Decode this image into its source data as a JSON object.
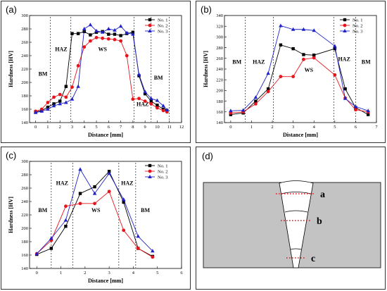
{
  "colors": {
    "series": [
      "#000000",
      "#e8141b",
      "#1f22c8"
    ],
    "plate": "#c3c3c3",
    "weld": "#ffffff",
    "dots": "#e8141b"
  },
  "chart_data": [
    {
      "type": "line",
      "label": "(a)",
      "xlabel": "Distance [mm]",
      "ylabel": "Hardness [HV]",
      "xlim": [
        -0.5,
        12
      ],
      "ylim": [
        140,
        300
      ],
      "xticks": [
        0,
        1,
        2,
        3,
        4,
        5,
        6,
        7,
        8,
        9,
        10,
        11,
        12
      ],
      "yticks": [
        140,
        160,
        180,
        200,
        220,
        240,
        260,
        280,
        300
      ],
      "boundaries": [
        1.2,
        2.9,
        8.1,
        9.5,
        11
      ],
      "regions": [
        {
          "text": "BM",
          "x": 0.6,
          "y": 210
        },
        {
          "text": "HAZ",
          "x": 2.1,
          "y": 247
        },
        {
          "text": "WS",
          "x": 5.5,
          "y": 247
        },
        {
          "text": "HAZ",
          "x": 8.8,
          "y": 165
        },
        {
          "text": "BM",
          "x": 10.1,
          "y": 204
        }
      ],
      "legend": "top-right",
      "series": [
        {
          "name": "No. 1",
          "marker": "square",
          "x": [
            0,
            0.5,
            1,
            1.5,
            2,
            2.5,
            3,
            3.5,
            4,
            4.5,
            5,
            5.5,
            6,
            6.5,
            7,
            7.5,
            8,
            8.5,
            9,
            9.5,
            10,
            10.5,
            10.8
          ],
          "y": [
            156,
            158,
            163,
            168,
            172,
            194,
            273,
            273,
            276,
            271,
            275,
            276,
            272,
            272,
            270,
            273,
            275,
            210,
            183,
            172,
            166,
            160,
            158
          ]
        },
        {
          "name": "No. 2",
          "marker": "circle",
          "x": [
            0,
            0.5,
            1,
            1.5,
            2,
            2.5,
            3,
            3.5,
            4,
            4.5,
            5,
            5.5,
            6,
            6.5,
            7,
            7.5,
            8,
            8.5,
            9,
            9.5,
            10,
            10.5,
            10.8
          ],
          "y": [
            157,
            160,
            170,
            178,
            182,
            178,
            193,
            225,
            253,
            262,
            267,
            266,
            265,
            264,
            262,
            240,
            175,
            176,
            172,
            168,
            162,
            158,
            156
          ]
        },
        {
          "name": "No. 3",
          "marker": "triangle",
          "x": [
            0,
            0.5,
            1,
            1.5,
            2,
            2.5,
            3,
            3.5,
            4,
            4.5,
            5,
            5.5,
            6,
            6.5,
            7,
            7.5,
            8,
            8.5,
            9,
            9.5,
            10,
            10.5,
            10.8
          ],
          "y": [
            155,
            157,
            160,
            165,
            168,
            170,
            175,
            194,
            280,
            286,
            277,
            275,
            280,
            278,
            284,
            274,
            272,
            212,
            186,
            176,
            173,
            165,
            159
          ]
        }
      ]
    },
    {
      "type": "line",
      "label": "(b)",
      "xlabel": "Distance [mm]",
      "ylabel": "Hardness [HV]",
      "xlim": [
        -0.3,
        7
      ],
      "ylim": [
        140,
        340
      ],
      "xticks": [
        0,
        1,
        2,
        3,
        4,
        5,
        6,
        7
      ],
      "yticks": [
        140,
        160,
        180,
        200,
        220,
        240,
        260,
        280,
        300,
        320,
        340
      ],
      "boundaries": [
        0.7,
        2.05,
        4.95,
        6.0
      ],
      "regions": [
        {
          "text": "BM",
          "x": 0.3,
          "y": 250
        },
        {
          "text": "HAZ",
          "x": 1.35,
          "y": 250
        },
        {
          "text": "WS",
          "x": 3.75,
          "y": 235
        },
        {
          "text": "HAZ",
          "x": 5.45,
          "y": 255
        },
        {
          "text": "BM",
          "x": 6.5,
          "y": 250
        }
      ],
      "legend": "top-right",
      "series": [
        {
          "name": "No. 1",
          "marker": "square",
          "x": [
            0,
            0.6,
            1.2,
            1.8,
            2.4,
            3.0,
            3.5,
            4.0,
            5.0,
            5.5,
            6.0,
            6.6
          ],
          "y": [
            155,
            158,
            180,
            203,
            285,
            278,
            267,
            266,
            278,
            203,
            168,
            155
          ]
        },
        {
          "name": "No. 2",
          "marker": "circle",
          "x": [
            0,
            0.6,
            1.2,
            1.8,
            2.4,
            3.0,
            3.5,
            4.0,
            5.0,
            5.5,
            6.0,
            6.6
          ],
          "y": [
            158,
            160,
            175,
            198,
            226,
            226,
            258,
            261,
            229,
            186,
            164,
            160
          ]
        },
        {
          "name": "No. 3",
          "marker": "triangle",
          "x": [
            0,
            0.6,
            1.2,
            1.8,
            2.4,
            3.0,
            3.5,
            4.0,
            5.0,
            5.5,
            6.0,
            6.6
          ],
          "y": [
            162,
            163,
            187,
            232,
            321,
            314,
            314,
            312,
            283,
            185,
            170,
            162
          ]
        }
      ]
    },
    {
      "type": "line",
      "label": "(c)",
      "xlabel": "Distance [mm]",
      "ylabel": "Hardness [HV]",
      "xlim": [
        -0.3,
        6
      ],
      "ylim": [
        140,
        300
      ],
      "xticks": [
        0,
        1,
        2,
        3,
        4,
        5,
        6
      ],
      "yticks": [
        140,
        160,
        180,
        200,
        220,
        240,
        260,
        280,
        300
      ],
      "boundaries": [
        0.6,
        1.5,
        3.4,
        4.1
      ],
      "regions": [
        {
          "text": "BM",
          "x": 0.25,
          "y": 224
        },
        {
          "text": "HAZ",
          "x": 1.05,
          "y": 265
        },
        {
          "text": "WS",
          "x": 2.45,
          "y": 224
        },
        {
          "text": "HAZ",
          "x": 3.75,
          "y": 265
        },
        {
          "text": "BM",
          "x": 4.5,
          "y": 224
        }
      ],
      "legend": "top-right",
      "series": [
        {
          "name": "No. 1",
          "marker": "square",
          "x": [
            0,
            0.6,
            1.2,
            1.8,
            2.4,
            3.0,
            3.6,
            4.2,
            4.8
          ],
          "y": [
            161,
            170,
            203,
            252,
            262,
            285,
            239,
            170,
            158
          ]
        },
        {
          "name": "No. 2",
          "marker": "circle",
          "x": [
            0,
            0.6,
            1.2,
            1.8,
            2.4,
            3.0,
            3.6,
            4.2,
            4.8
          ],
          "y": [
            162,
            182,
            233,
            237,
            237,
            255,
            197,
            170,
            157
          ]
        },
        {
          "name": "No. 3",
          "marker": "triangle",
          "x": [
            0,
            0.6,
            1.2,
            1.8,
            2.4,
            3.0,
            3.6,
            4.2,
            4.8
          ],
          "y": [
            162,
            185,
            212,
            288,
            252,
            282,
            243,
            188,
            166
          ]
        }
      ]
    }
  ],
  "diagram": {
    "label": "(d)",
    "points": [
      "a",
      "b",
      "c"
    ]
  }
}
